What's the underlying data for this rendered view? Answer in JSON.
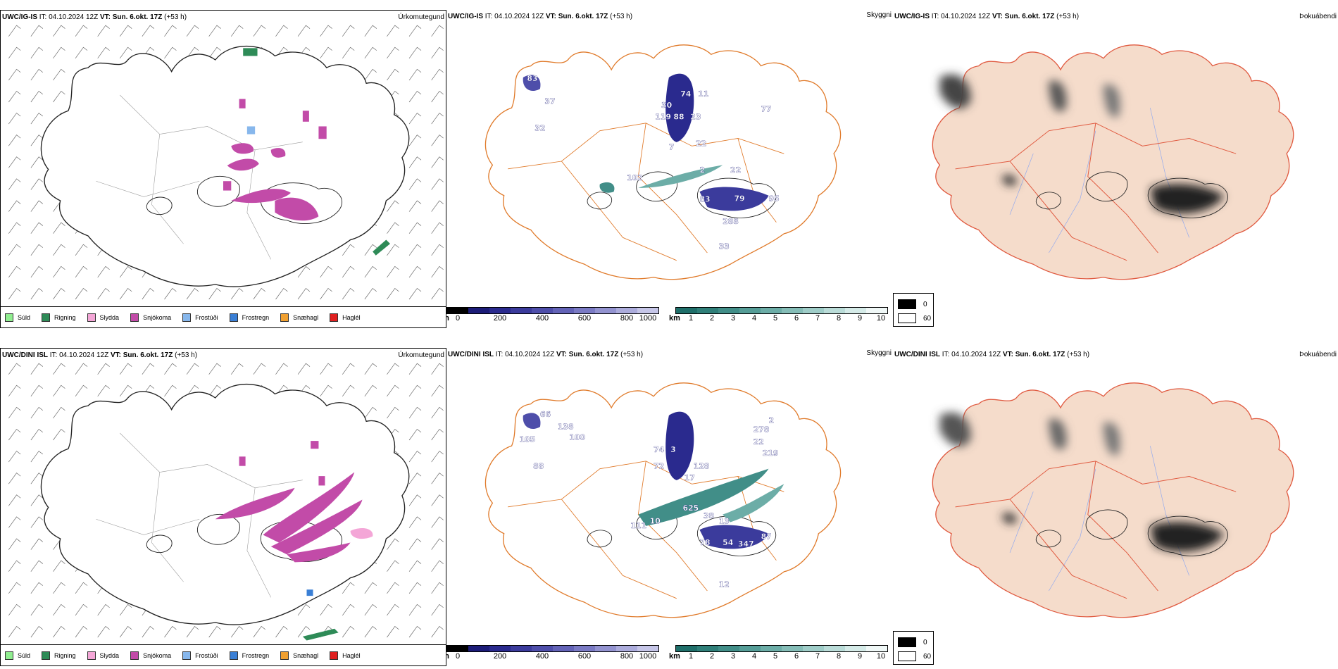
{
  "rows": [
    {
      "model": "UWC/IG-IS",
      "it_label": "IT:",
      "it_value": "04.10.2024 12Z",
      "vt_label": "VT:",
      "vt_value": "Sun. 6.okt. 17Z",
      "lead": "(+53 h)",
      "elevation_labels": [
        "83",
        "37",
        "32",
        "30",
        "74",
        "119",
        "88",
        "23",
        "7",
        "22",
        "11",
        "77",
        "102",
        "2",
        "22",
        "83",
        "79",
        "95",
        "288",
        "33"
      ]
    },
    {
      "model": "UWC/DINI ISL",
      "it_label": "IT:",
      "it_value": "04.10.2024 12Z",
      "vt_label": "VT:",
      "vt_value": "Sun. 6.okt. 17Z",
      "lead": "(+53 h)",
      "elevation_labels": [
        "66",
        "138",
        "100",
        "105",
        "88",
        "74",
        "3",
        "72",
        "128",
        "17",
        "278",
        "22",
        "219",
        "2",
        "111",
        "10",
        "625",
        "38",
        "13",
        "78",
        "54",
        "347",
        "87",
        "12"
      ]
    }
  ],
  "panel_headers": {
    "precip": "Úrkomutegund",
    "ceiling": "Skyggni",
    "fog": "Þokuábendi"
  },
  "precip_legend": [
    {
      "label": "Súld",
      "color": "#90ee90"
    },
    {
      "label": "Rigning",
      "color": "#2e8b57"
    },
    {
      "label": "Slydda",
      "color": "#f4a6d7"
    },
    {
      "label": "Snjókoma",
      "color": "#c24ba8"
    },
    {
      "label": "Frostúði",
      "color": "#87b7ec"
    },
    {
      "label": "Frostregn",
      "color": "#3a7fd5"
    },
    {
      "label": "Snæhagl",
      "color": "#f0a030"
    },
    {
      "label": "Haglél",
      "color": "#e02020"
    }
  ],
  "ceiling_bar": {
    "unit": "m",
    "ticks": [
      "0",
      "200",
      "400",
      "600",
      "800",
      "1000"
    ],
    "colors": [
      "#000000",
      "#1c1c78",
      "#2a2a8e",
      "#3b3b9c",
      "#4e4eaa",
      "#6363b7",
      "#7a7ac4",
      "#9393d0",
      "#acacdc",
      "#c6c6e8"
    ]
  },
  "visibility_bar": {
    "unit": "km",
    "ticks": [
      "1",
      "2",
      "3",
      "4",
      "5",
      "6",
      "7",
      "8",
      "9",
      "10"
    ],
    "colors": [
      "#1f6f6a",
      "#2f7f79",
      "#418e88",
      "#559d97",
      "#6cada7",
      "#85bdb7",
      "#9fcdc8",
      "#badcd8",
      "#d5ebe8",
      "#f0f8f7"
    ]
  },
  "fog_key": {
    "entries": [
      {
        "label": "0",
        "color": "#000000"
      },
      {
        "label": "60",
        "color": "#ffffff"
      }
    ]
  },
  "colors": {
    "outline_precip": "#222222",
    "outline_ceiling": "#e07a2a",
    "fog_fill": "#f5dccb",
    "fog_roads": "#e05a40",
    "fog_rivers": "#8fa8f0"
  }
}
